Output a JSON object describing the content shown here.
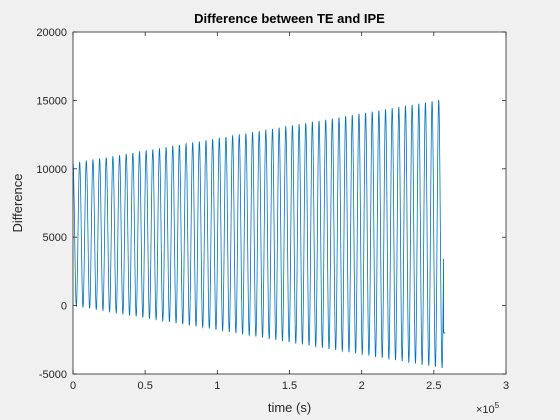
{
  "chart_data": {
    "type": "line",
    "title": "Difference between TE and IPE",
    "xlabel": "time (s)",
    "ylabel": "Difference",
    "x_exponent_label": "×10",
    "x_exponent_power": "5",
    "xlim": [
      0,
      300000
    ],
    "ylim": [
      -5000,
      20000
    ],
    "x_ticks": [
      0,
      50000,
      100000,
      150000,
      200000,
      250000,
      300000
    ],
    "x_tick_labels": [
      "0",
      "0.5",
      "1",
      "1.5",
      "2",
      "2.5",
      "3"
    ],
    "y_ticks": [
      -5000,
      0,
      5000,
      10000,
      15000,
      20000
    ],
    "y_tick_labels": [
      "-5000",
      "0",
      "5000",
      "10000",
      "15000",
      "20000"
    ],
    "grid": false,
    "line_color": "#0072bd",
    "oscillation": {
      "x_start": 0,
      "x_end": 258000,
      "cycles": 56,
      "peak_at_start": 10400,
      "peak_at_end": 15100,
      "trough_at_start": 0,
      "trough_at_end": -4600,
      "final_value": -2000
    }
  }
}
